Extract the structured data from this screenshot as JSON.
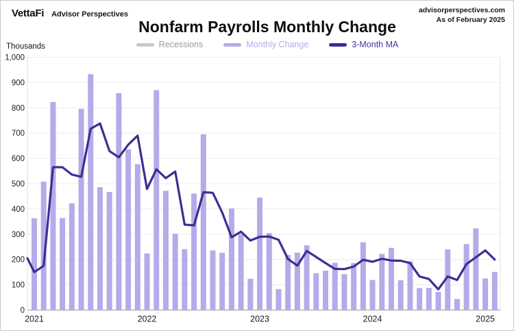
{
  "header": {
    "logo_primary": "VettaFi",
    "logo_secondary": "Advisor Perspectives",
    "source_site": "advisorperspectives.com",
    "as_of": "As of February 2025"
  },
  "title": "Nonfarm Payrolls Monthly Change",
  "legend": {
    "items": [
      {
        "label": "Recessions",
        "swatch_color": "#c8c8c8",
        "text_color": "#9a9a9a"
      },
      {
        "label": "Monthly Change",
        "swatch_color": "#b5abe8",
        "text_color": "#b5abe8"
      },
      {
        "label": "3-Month MA",
        "swatch_color": "#3e2d90",
        "text_color": "#46339e"
      }
    ]
  },
  "y_axis": {
    "unit_label": "Thousands"
  },
  "chart_data": {
    "type": "bar",
    "title": "Nonfarm Payrolls Monthly Change",
    "ylabel": "Thousands",
    "ylim": [
      0,
      1000
    ],
    "grid": true,
    "y_tick_values": [
      1000,
      900,
      800,
      700,
      600,
      500,
      400,
      300,
      200,
      100,
      0
    ],
    "y_tick_labels": [
      "1,000",
      "900",
      "800",
      "700",
      "600",
      "500",
      "400",
      "300",
      "200",
      "100",
      "0"
    ],
    "x_tick_labels": [
      "2021",
      "2022",
      "2023",
      "2024",
      "2025"
    ],
    "x_tick_month_indexes": [
      0,
      12,
      24,
      36,
      48
    ],
    "months": [
      "Jan 2021",
      "Feb 2021",
      "Mar 2021",
      "Apr 2021",
      "May 2021",
      "Jun 2021",
      "Jul 2021",
      "Aug 2021",
      "Sep 2021",
      "Oct 2021",
      "Nov 2021",
      "Dec 2021",
      "Jan 2022",
      "Feb 2022",
      "Mar 2022",
      "Apr 2022",
      "May 2022",
      "Jun 2022",
      "Jul 2022",
      "Aug 2022",
      "Sep 2022",
      "Oct 2022",
      "Nov 2022",
      "Dec 2022",
      "Jan 2023",
      "Feb 2023",
      "Mar 2023",
      "Apr 2023",
      "May 2023",
      "Jun 2023",
      "Jul 2023",
      "Aug 2023",
      "Sep 2023",
      "Oct 2023",
      "Nov 2023",
      "Dec 2023",
      "Jan 2024",
      "Feb 2024",
      "Mar 2024",
      "Apr 2024",
      "May 2024",
      "Jun 2024",
      "Jul 2024",
      "Aug 2024",
      "Sep 2024",
      "Oct 2024",
      "Nov 2024",
      "Dec 2024",
      "Jan 2025",
      "Feb 2025"
    ],
    "series": [
      {
        "name": "Monthly Change",
        "style": "bar",
        "color": "#b5abe8",
        "values": [
          363,
          508,
          823,
          364,
          422,
          796,
          933,
          486,
          467,
          858,
          636,
          577,
          224,
          870,
          472,
          302,
          241,
          461,
          695,
          236,
          227,
          402,
          300,
          124,
          445,
          305,
          83,
          218,
          227,
          256,
          146,
          156,
          187,
          142,
          186,
          268,
          119,
          222,
          246,
          118,
          193,
          87,
          88,
          72,
          240,
          44,
          261,
          323,
          125,
          151
        ]
      },
      {
        "name": "3-Month MA",
        "style": "line",
        "color": "#3e2d90",
        "left_edge_value": 205,
        "values": [
          150,
          175,
          565,
          565,
          536,
          527,
          717,
          738,
          629,
          604,
          654,
          690,
          479,
          557,
          522,
          548,
          338,
          335,
          466,
          464,
          386,
          288,
          310,
          275,
          290,
          291,
          278,
          202,
          176,
          234,
          210,
          186,
          163,
          162,
          172,
          199,
          191,
          203,
          196,
          195,
          186,
          133,
          123,
          82,
          133,
          119,
          182,
          209,
          236,
          200
        ]
      }
    ],
    "recession_spans": [],
    "legend_entries": [
      "Recessions",
      "Monthly Change",
      "3-Month MA"
    ],
    "legend_position": "top"
  }
}
